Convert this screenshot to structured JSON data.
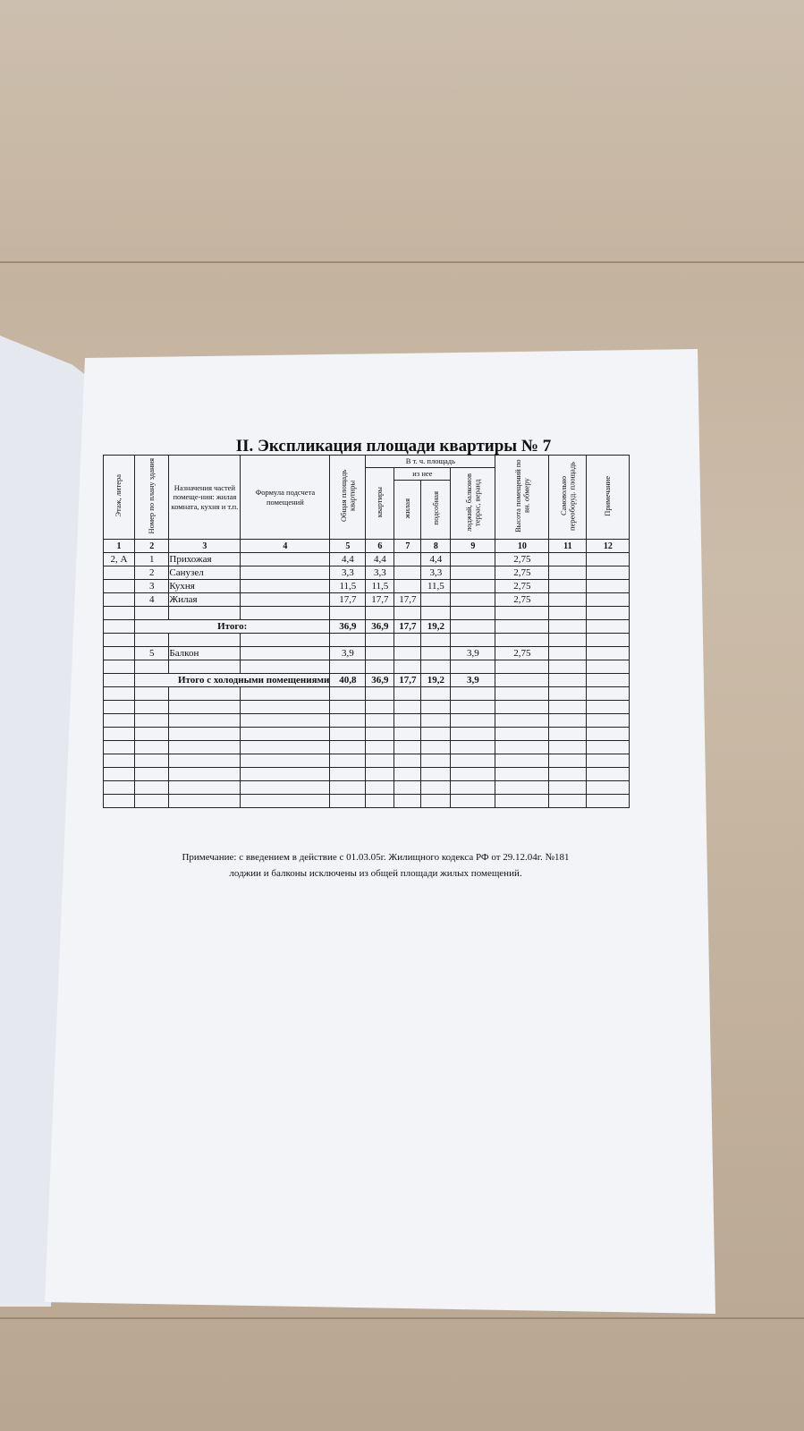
{
  "title": "II. Экспликация площади квартиры № 7",
  "table": {
    "headers": {
      "floor": "Этаж, литера",
      "room_no": "Номер по плану здания",
      "purpose": "Назначения частей помеще-ния: жилая комната, кухня и т.п.",
      "formula": "Формула подсчета помещений",
      "total": "Общая площадь квартиры",
      "incl": "В т. ч. площадь",
      "apartment": "квартиры",
      "of_which": "из нее",
      "living": "жилая",
      "auxiliary": "подсобная",
      "loggia": "лоджий, балконов террас, веранд",
      "height": "Высота помещений по вн. обмеру",
      "self": "Самовольно переоборуд. площадь",
      "note": "Примечание"
    },
    "column_numbers": [
      "1",
      "2",
      "3",
      "4",
      "5",
      "6",
      "7",
      "8",
      "9",
      "10",
      "11",
      "12"
    ],
    "rows": [
      {
        "floor": "2, А",
        "no": "1",
        "name": "Прихожая",
        "total": "4,4",
        "apartment": "4,4",
        "auxiliary": "4,4",
        "height": "2,75"
      },
      {
        "no": "2",
        "name": "Санузел",
        "total": "3,3",
        "apartment": "3,3",
        "auxiliary": "3,3",
        "height": "2,75"
      },
      {
        "no": "3",
        "name": "Кухня",
        "total": "11,5",
        "apartment": "11,5",
        "auxiliary": "11,5",
        "height": "2,75"
      },
      {
        "no": "4",
        "name": "Жилая",
        "total": "17,7",
        "apartment": "17,7",
        "living": "17,7",
        "height": "2,75"
      },
      {
        "label": "Итого:",
        "total": "36,9",
        "apartment": "36,9",
        "living": "17,7",
        "auxiliary": "19,2"
      },
      {
        "no": "5",
        "name": "Балкон",
        "total": "3,9",
        "loggia": "3,9",
        "height": "2,75"
      },
      {
        "label": "Итого с холодными помещениями",
        "total": "40,8",
        "apartment": "36,9",
        "living": "17,7",
        "auxiliary": "19,2",
        "loggia": "3,9"
      }
    ]
  },
  "note": [
    "Примечание: с введением в действие с 01.03.05г. Жилищного кодекса РФ от 29.12.04г. №181",
    "лоджии и балконы  исключены из  общей  площади жилых помещений."
  ]
}
